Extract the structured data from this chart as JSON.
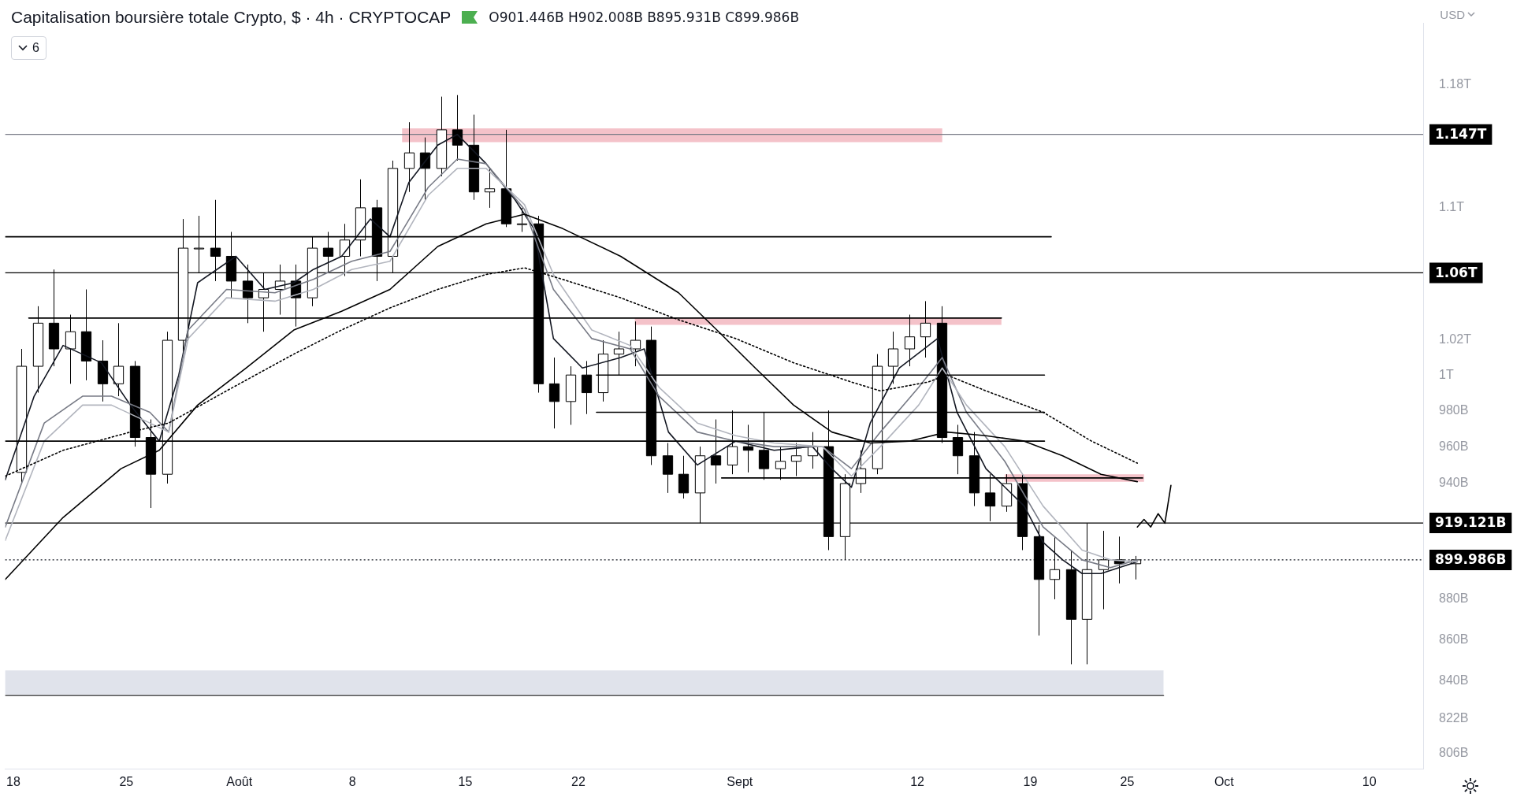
{
  "chart_data": {
    "type": "candlestick",
    "title": "Capitalisation boursière totale Crypto, $ · 4h · CRYPTOCAP",
    "annotations": [
      "O901.446B H902.008B B895.931B C899.986B",
      "6",
      "USD"
    ],
    "xlim": [
      "--07-17T12:00",
      "--10-13T08:00"
    ],
    "xticks": [
      {
        "value": "--07-18",
        "label": "18"
      },
      {
        "value": "--07-25",
        "label": "25"
      },
      {
        "value": "--08-01",
        "label": "Août"
      },
      {
        "value": "--08-08",
        "label": "8"
      },
      {
        "value": "--08-15",
        "label": "15"
      },
      {
        "value": "--08-22",
        "label": "22"
      },
      {
        "value": "--09-01",
        "label": "Sept"
      },
      {
        "value": "--09-12",
        "label": "12"
      },
      {
        "value": "--09-19",
        "label": "19"
      },
      {
        "value": "--09-25",
        "label": "25"
      },
      {
        "value": "--10-01",
        "label": "Oct"
      },
      {
        "value": "--10-10",
        "label": "10"
      }
    ],
    "ylim": [
      799000000000.0,
      1222000000000.0
    ],
    "yticks": [
      {
        "value": 806000000000.0,
        "label": "806B"
      },
      {
        "value": 822000000000.0,
        "label": "822B"
      },
      {
        "value": 840000000000.0,
        "label": "840B"
      },
      {
        "value": 860000000000.0,
        "label": "860B"
      },
      {
        "value": 880000000000.0,
        "label": "880B"
      },
      {
        "value": 940000000000.0,
        "label": "940B"
      },
      {
        "value": 960000000000.0,
        "label": "960B"
      },
      {
        "value": 980000000000.0,
        "label": "980B"
      },
      {
        "value": 1000000000000.0,
        "label": "1T"
      },
      {
        "value": 1020000000000.0,
        "label": "1.02T"
      },
      {
        "value": 1100000000000.0,
        "label": "1.1T"
      },
      {
        "value": 1180000000000.0,
        "label": "1.18T"
      }
    ],
    "log": "y",
    "grid": false,
    "legend": false,
    "series": [
      {
        "type": "area",
        "color": "#e0e3eb",
        "x": [
          "--07-17T12:00",
          "--09-27T06:00"
        ],
        "values": [
          null,
          null
        ],
        "lower": [
          833000000000.0,
          833000000000.0
        ],
        "upper": [
          845000000000.0,
          845000000000.0
        ]
      },
      {
        "type": "area",
        "color": "#f4c2c9",
        "x": [
          "--08-11T02:00",
          "--09-13T13:00"
        ],
        "values": [
          null,
          null
        ],
        "lower": [
          1142000000000.0,
          1142000000000.0
        ],
        "upper": [
          1151000000000.0,
          1151000000000.0
        ]
      },
      {
        "type": "area",
        "color": "#f4c2c9",
        "x": [
          "--08-25T12:00",
          "--09-17T05:00"
        ],
        "values": [
          null,
          null
        ],
        "lower": [
          1029000000000.0,
          1029000000000.0
        ],
        "upper": [
          1033000000000.0,
          1033000000000.0
        ]
      },
      {
        "type": "area",
        "color": "#f4c2c9",
        "x": [
          "--09-17T10:00",
          "--09-26T01:00"
        ],
        "values": [
          null,
          null
        ],
        "lower": [
          941000000000.0,
          941000000000.0
        ],
        "upper": [
          945000000000.0,
          945000000000.0
        ]
      },
      {
        "type": "line",
        "color": "#555555",
        "line_style": "solid",
        "x": [
          "--07-17T12:00",
          "--09-27T06:00"
        ],
        "values": [
          833000000000.0,
          833000000000.0
        ]
      },
      {
        "type": "line",
        "color": "#000000",
        "line_style": "solid",
        "x": [
          "--07-17T12:00",
          "--09-20T07:00"
        ],
        "values": [
          1082000000000.0,
          1082000000000.0
        ]
      },
      {
        "type": "line",
        "color": "#000000",
        "line_style": "solid",
        "x": [
          "--07-18T23:00",
          "--09-17T05:00"
        ],
        "values": [
          1033000000000.0,
          1033000000000.0
        ]
      },
      {
        "type": "line",
        "color": "#000000",
        "line_style": "solid",
        "x": [
          "--08-23T03:00",
          "--09-19T21:00"
        ],
        "values": [
          1000000000000.0,
          1000000000000.0
        ]
      },
      {
        "type": "line",
        "color": "#000000",
        "line_style": "solid",
        "x": [
          "--08-23T03:00",
          "--09-19T21:00"
        ],
        "values": [
          979000000000.0,
          979000000000.0
        ]
      },
      {
        "type": "line",
        "color": "#000000",
        "line_style": "solid",
        "x": [
          "--07-17T12:00",
          "--09-19T21:00"
        ],
        "values": [
          963000000000.0,
          963000000000.0
        ]
      },
      {
        "type": "line",
        "color": "#000000",
        "line_style": "solid",
        "x": [
          "--08-30T21:00",
          "--09-25T23:00"
        ],
        "values": [
          943000000000.0,
          943000000000.0
        ]
      },
      {
        "type": "line",
        "color": "#000000",
        "line_style": "solid",
        "x": [
          "--07-17T12:00",
          "--07-21T02:00",
          "--07-24T16:00",
          "--07-27T01:00",
          "--07-29T10:00",
          "--08-01T10:00",
          "--08-04T09:00",
          "--08-07T08:00",
          "--08-10T08:00",
          "--08-13T07:00",
          "--08-16T07:00",
          "--08-18T16:00",
          "--08-21T01:00",
          "--08-24T15:00",
          "--08-28T05:00",
          "--08-30T14:00",
          "--09-01T23:00",
          "--09-04T08:00",
          "--09-06T17:00",
          "--09-09T02:00",
          "--09-11T12:00",
          "--09-13T20:00",
          "--09-16T06:00",
          "--09-18T15:00",
          "--09-21T00:00",
          "--09-23T09:00",
          "--09-25T15:00"
        ],
        "values": [
          890000000000.0,
          922000000000.0,
          948000000000.0,
          958000000000.0,
          983000000000.0,
          1004000000000.0,
          1026000000000.0,
          1037000000000.0,
          1050000000000.0,
          1076000000000.0,
          1090000000000.0,
          1096000000000.0,
          1087000000000.0,
          1070000000000.0,
          1048000000000.0,
          1026000000000.0,
          1004000000000.0,
          983000000000.0,
          968000000000.0,
          962000000000.0,
          963000000000.0,
          968000000000.0,
          966000000000.0,
          963000000000.0,
          955000000000.0,
          945000000000.0,
          941000000000.0
        ]
      },
      {
        "type": "line",
        "color": "#000000",
        "line_style": "dotted",
        "x": [
          "--07-17T12:00",
          "--07-21T02:00",
          "--07-25T06:00",
          "--07-27T15:00",
          "--07-31T05:00",
          "--08-04T09:00",
          "--08-07T08:00",
          "--08-10T08:00",
          "--08-13T07:00",
          "--08-16T07:00",
          "--08-18T16:00",
          "--08-21T01:00",
          "--08-24T15:00",
          "--08-28T05:00",
          "--08-31T18:00",
          "--09-04T08:00",
          "--09-07T22:00",
          "--09-09T17:00",
          "--09-12T16:00",
          "--09-13T20:00",
          "--09-16T06:00",
          "--09-19T19:00",
          "--09-22T19:00",
          "--09-25T15:00"
        ],
        "values": [
          944000000000.0,
          958000000000.0,
          968000000000.0,
          973000000000.0,
          991000000000.0,
          1012000000000.0,
          1026000000000.0,
          1039000000000.0,
          1050000000000.0,
          1059000000000.0,
          1063000000000.0,
          1056000000000.0,
          1045000000000.0,
          1032000000000.0,
          1021000000000.0,
          1007000000000.0,
          996000000000.0,
          991000000000.0,
          996000000000.0,
          1000000000000.0,
          991000000000.0,
          979000000000.0,
          963000000000.0,
          951000000000.0
        ]
      },
      {
        "type": "line",
        "color": "#b2b5be",
        "line_style": "solid",
        "x": [
          "--07-17T12:00",
          "--07-19T22:00",
          "--07-22T07:00",
          "--07-24T02:00",
          "--07-26T11:00",
          "--07-27T15:00",
          "--07-28T20:00",
          "--07-31T05:00",
          "--08-03T05:00",
          "--08-05T14:00",
          "--08-07T23:00",
          "--08-10T08:00",
          "--08-12T17:00",
          "--08-14T12:00",
          "--08-16T07:00",
          "--08-18T16:00",
          "--08-20T11:00",
          "--08-22T20:00",
          "--08-25T05:00",
          "--08-27T00:00",
          "--08-29T09:00",
          "--08-31T18:00",
          "--09-03T03:00",
          "--09-06T03:00",
          "--09-07T22:00",
          "--09-09T17:00",
          "--09-12T02:00",
          "--09-13T13:00",
          "--09-15T01:00",
          "--09-17T10:00",
          "--09-19T19:00",
          "--09-22T05:00",
          "--09-23T23:00",
          "--09-25T15:00"
        ],
        "values": [
          910000000000.0,
          963000000000.0,
          983000000000.0,
          983000000000.0,
          973000000000.0,
          968000000000.0,
          1021000000000.0,
          1045000000000.0,
          1043000000000.0,
          1050000000000.0,
          1062000000000.0,
          1067000000000.0,
          1108000000000.0,
          1125000000000.0,
          1125000000000.0,
          1102000000000.0,
          1059000000000.0,
          1026000000000.0,
          1017000000000.0,
          993000000000.0,
          973000000000.0,
          966000000000.0,
          962000000000.0,
          960000000000.0,
          944000000000.0,
          960000000000.0,
          983000000000.0,
          1004000000000.0,
          983000000000.0,
          960000000000.0,
          928000000000.0,
          905000000000.0,
          900000000000.0,
          899000000000.0
        ]
      },
      {
        "type": "line",
        "color": "#787b86",
        "line_style": "solid",
        "x": [
          "--07-17T12:00",
          "--07-19T22:00",
          "--07-22T07:00",
          "--07-24T02:00",
          "--07-26T11:00",
          "--07-27T15:00",
          "--07-28T20:00",
          "--07-31T05:00",
          "--08-03T05:00",
          "--08-05T14:00",
          "--08-07T23:00",
          "--08-10T08:00",
          "--08-12T17:00",
          "--08-14T12:00",
          "--08-16T07:00",
          "--08-18T16:00",
          "--08-20T11:00",
          "--08-22T20:00",
          "--08-25T05:00",
          "--08-27T00:00",
          "--08-29T09:00",
          "--08-31T18:00",
          "--09-03T03:00",
          "--09-06T03:00",
          "--09-07T22:00",
          "--09-09T17:00",
          "--09-12T02:00",
          "--09-13T13:00",
          "--09-15T01:00",
          "--09-17T10:00",
          "--09-19T19:00",
          "--09-22T05:00",
          "--09-23T23:00",
          "--09-25T15:00"
        ],
        "values": [
          917000000000.0,
          973000000000.0,
          988000000000.0,
          988000000000.0,
          979000000000.0,
          968000000000.0,
          1026000000000.0,
          1050000000000.0,
          1048000000000.0,
          1056000000000.0,
          1067000000000.0,
          1073000000000.0,
          1113000000000.0,
          1131000000000.0,
          1128000000000.0,
          1099000000000.0,
          1050000000000.0,
          1021000000000.0,
          1015000000000.0,
          988000000000.0,
          968000000000.0,
          963000000000.0,
          960000000000.0,
          960000000000.0,
          948000000000.0,
          968000000000.0,
          993000000000.0,
          1010000000000.0,
          979000000000.0,
          952000000000.0,
          917000000000.0,
          900000000000.0,
          896000000000.0,
          900000000000.0
        ]
      },
      {
        "type": "line",
        "color": "#131722",
        "line_style": "solid",
        "x": [
          "--07-17T12:00",
          "--07-19T07:00",
          "--07-21T02:00",
          "--07-23T11:00",
          "--07-25T06:00",
          "--07-27T01:00",
          "--07-28T06:00",
          "--07-29T10:00",
          "--07-31T19:00",
          "--08-02T14:00",
          "--08-04T09:00",
          "--08-05T14:00",
          "--08-07T08:00",
          "--08-09T03:00",
          "--08-10T08:00",
          "--08-11T12:00",
          "--08-13T07:00",
          "--08-14T12:00",
          "--08-16T07:00",
          "--08-18T02:00",
          "--08-19T06:00",
          "--08-20T11:00",
          "--08-22T06:00",
          "--08-24T15:00",
          "--08-26T02:00",
          "--08-27T14:00",
          "--08-29T09:00",
          "--08-31T18:00",
          "--09-03T03:00",
          "--09-05T12:00",
          "--09-06T17:00",
          "--09-07T22:00",
          "--09-09T02:00",
          "--09-10T21:00",
          "--09-13T06:00",
          "--09-14T11:00",
          "--09-16T06:00",
          "--09-18T15:00",
          "--09-19T19:00",
          "--09-21T00:00",
          "--09-22T05:00",
          "--09-23T09:00",
          "--09-25T15:00"
        ],
        "values": [
          942000000000.0,
          988000000000.0,
          1017000000000.0,
          1007000000000.0,
          983000000000.0,
          963000000000.0,
          1000000000000.0,
          1054000000000.0,
          1070000000000.0,
          1050000000000.0,
          1054000000000.0,
          1062000000000.0,
          1070000000000.0,
          1093000000000.0,
          1082000000000.0,
          1116000000000.0,
          1140000000000.0,
          1147000000000.0,
          1128000000000.0,
          1105000000000.0,
          1087000000000.0,
          1021000000000.0,
          1004000000000.0,
          1010000000000.0,
          1015000000000.0,
          968000000000.0,
          950000000000.0,
          963000000000.0,
          958000000000.0,
          960000000000.0,
          948000000000.0,
          938000000000.0,
          973000000000.0,
          1004000000000.0,
          1021000000000.0,
          979000000000.0,
          948000000000.0,
          928000000000.0,
          909000000000.0,
          900000000000.0,
          893000000000.0,
          893000000000.0,
          899000000000.0
        ]
      },
      {
        "type": "line",
        "color": "#000000",
        "line_style": "solid",
        "x": [
          "--09-25T15:00",
          "--09-26T01:00",
          "--09-26T11:00",
          "--09-26T22:00",
          "--09-27T08:00",
          "--09-27T17:00"
        ],
        "values": [
          917000000000.0,
          921000000000.0,
          917000000000.0,
          924000000000.0,
          919000000000.0,
          939000000000.0
        ]
      },
      {
        "color": "#000000",
        "colors": [
          "#ffffff",
          "#ffffff",
          "#000000",
          "#ffffff",
          "#000000",
          "#000000",
          "#ffffff",
          "#000000",
          "#000000",
          "#ffffff",
          "#ffffff",
          "#ffffff",
          "#000000",
          "#000000",
          "#000000",
          "#ffffff",
          "#ffffff",
          "#000000",
          "#ffffff",
          "#000000",
          "#ffffff",
          "#ffffff",
          "#000000",
          "#ffffff",
          "#ffffff",
          "#000000",
          "#ffffff",
          "#000000",
          "#000000",
          "#ffffff",
          "#000000",
          "#ffffff",
          "#000000",
          "#000000",
          "#ffffff",
          "#000000",
          "#ffffff",
          "#ffffff",
          "#ffffff",
          "#000000",
          "#000000",
          "#000000",
          "#ffffff",
          "#000000",
          "#ffffff",
          "#000000",
          "#000000",
          "#ffffff",
          "#ffffff",
          "#ffffff",
          "#000000",
          "#ffffff",
          "#ffffff",
          "#ffffff",
          "#ffffff",
          "#ffffff",
          "#ffffff",
          "#000000",
          "#000000",
          "#000000",
          "#000000",
          "#ffffff",
          "#000000",
          "#000000",
          "#ffffff",
          "#000000",
          "#ffffff",
          "#ffffff",
          "#000000",
          "#ffffff"
        ],
        "x": [
          "--07-18T12:00",
          "--07-19T12:00",
          "--07-20T12:00",
          "--07-21T12:00",
          "--07-22T12:00",
          "--07-23T12:00",
          "--07-24T12:00",
          "--07-25T12:00",
          "--07-26T12:00",
          "--07-27T12:00",
          "--07-28T12:00",
          "--07-29T12:00",
          "--07-30T12:00",
          "--07-31T12:00",
          "--08-01T12:00",
          "--08-02T12:00",
          "--08-03T12:00",
          "--08-04T12:00",
          "--08-05T12:00",
          "--08-06T12:00",
          "--08-07T12:00",
          "--08-08T12:00",
          "--08-09T12:00",
          "--08-10T12:00",
          "--08-11T12:00",
          "--08-12T12:00",
          "--08-13T12:00",
          "--08-14T12:00",
          "--08-15T12:00",
          "--08-16T12:00",
          "--08-17T12:00",
          "--08-18T12:00",
          "--08-19T12:00",
          "--08-20T12:00",
          "--08-21T12:00",
          "--08-22T12:00",
          "--08-23T12:00",
          "--08-24T12:00",
          "--08-25T12:00",
          "--08-26T12:00",
          "--08-27T12:00",
          "--08-28T12:00",
          "--08-29T12:00",
          "--08-30T12:00",
          "--08-31T12:00",
          "--09-01T12:00",
          "--09-02T12:00",
          "--09-03T12:00",
          "--09-04T12:00",
          "--09-05T12:00",
          "--09-06T12:00",
          "--09-07T12:00",
          "--09-08T12:00",
          "--09-09T12:00",
          "--09-10T12:00",
          "--09-11T12:00",
          "--09-12T12:00",
          "--09-13T12:00",
          "--09-14T12:00",
          "--09-15T12:00",
          "--09-16T12:00",
          "--09-17T12:00",
          "--09-18T12:00",
          "--09-19T12:00",
          "--09-20T12:00",
          "--09-21T12:00",
          "--09-22T12:00",
          "--09-23T12:00",
          "--09-24T12:00",
          "--09-25T12:00"
        ],
        "ohlc": [
          [
            946000000000.0,
            1015000000000.0,
            940000000000.0,
            1005000000000.0
          ],
          [
            1005000000000.0,
            1040000000000.0,
            990000000000.0,
            1030000000000.0
          ],
          [
            1030000000000.0,
            1062000000000.0,
            1005000000000.0,
            1015000000000.0
          ],
          [
            1015000000000.0,
            1035000000000.0,
            995000000000.0,
            1025000000000.0
          ],
          [
            1025000000000.0,
            1050000000000.0,
            997000000000.0,
            1008000000000.0
          ],
          [
            1008000000000.0,
            1020000000000.0,
            985000000000.0,
            995000000000.0
          ],
          [
            995000000000.0,
            1030000000000.0,
            988000000000.0,
            1005000000000.0
          ],
          [
            1005000000000.0,
            1008000000000.0,
            960000000000.0,
            965000000000.0
          ],
          [
            965000000000.0,
            975000000000.0,
            927000000000.0,
            945000000000.0
          ],
          [
            945000000000.0,
            1025000000000.0,
            940000000000.0,
            1020000000000.0
          ],
          [
            1020000000000.0,
            1093000000000.0,
            1010000000000.0,
            1075000000000.0
          ],
          [
            1075000000000.0,
            1095000000000.0,
            1060000000000.0,
            1075000000000.0
          ],
          [
            1075000000000.0,
            1105000000000.0,
            1055000000000.0,
            1070000000000.0
          ],
          [
            1070000000000.0,
            1085000000000.0,
            1045000000000.0,
            1055000000000.0
          ],
          [
            1055000000000.0,
            1065000000000.0,
            1030000000000.0,
            1045000000000.0
          ],
          [
            1045000000000.0,
            1060000000000.0,
            1025000000000.0,
            1050000000000.0
          ],
          [
            1050000000000.0,
            1065000000000.0,
            1035000000000.0,
            1055000000000.0
          ],
          [
            1055000000000.0,
            1065000000000.0,
            1028000000000.0,
            1045000000000.0
          ],
          [
            1045000000000.0,
            1082000000000.0,
            1040000000000.0,
            1075000000000.0
          ],
          [
            1075000000000.0,
            1085000000000.0,
            1060000000000.0,
            1070000000000.0
          ],
          [
            1070000000000.0,
            1090000000000.0,
            1058000000000.0,
            1080000000000.0
          ],
          [
            1080000000000.0,
            1118000000000.0,
            1070000000000.0,
            1100000000000.0
          ],
          [
            1100000000000.0,
            1105000000000.0,
            1055000000000.0,
            1070000000000.0
          ],
          [
            1070000000000.0,
            1130000000000.0,
            1060000000000.0,
            1125000000000.0
          ],
          [
            1125000000000.0,
            1155000000000.0,
            1110000000000.0,
            1135000000000.0
          ],
          [
            1135000000000.0,
            1145000000000.0,
            1105000000000.0,
            1125000000000.0
          ],
          [
            1125000000000.0,
            1172000000000.0,
            1120000000000.0,
            1150000000000.0
          ],
          [
            1150000000000.0,
            1173000000000.0,
            1130000000000.0,
            1140000000000.0
          ],
          [
            1140000000000.0,
            1160000000000.0,
            1105000000000.0,
            1110000000000.0
          ],
          [
            1110000000000.0,
            1125000000000.0,
            1100000000000.0,
            1112000000000.0
          ],
          [
            1112000000000.0,
            1150000000000.0,
            1088000000000.0,
            1090000000000.0
          ],
          [
            1090000000000.0,
            1100000000000.0,
            1085000000000.0,
            1090000000000.0
          ],
          [
            1090000000000.0,
            1095000000000.0,
            990000000000.0,
            995000000000.0
          ],
          [
            995000000000.0,
            1010000000000.0,
            970000000000.0,
            985000000000.0
          ],
          [
            985000000000.0,
            1005000000000.0,
            972000000000.0,
            1000000000000.0
          ],
          [
            1000000000000.0,
            1008000000000.0,
            978000000000.0,
            990000000000.0
          ],
          [
            990000000000.0,
            1020000000000.0,
            985000000000.0,
            1012000000000.0
          ],
          [
            1012000000000.0,
            1025000000000.0,
            1000000000000.0,
            1015000000000.0
          ],
          [
            1015000000000.0,
            1031000000000.0,
            1005000000000.0,
            1020000000000.0
          ],
          [
            1020000000000.0,
            1028000000000.0,
            950000000000.0,
            955000000000.0
          ],
          [
            955000000000.0,
            962000000000.0,
            935000000000.0,
            945000000000.0
          ],
          [
            945000000000.0,
            955000000000.0,
            932000000000.0,
            935000000000.0
          ],
          [
            935000000000.0,
            960000000000.0,
            919000000000.0,
            955000000000.0
          ],
          [
            955000000000.0,
            975000000000.0,
            940000000000.0,
            950000000000.0
          ],
          [
            950000000000.0,
            980000000000.0,
            945000000000.0,
            960000000000.0
          ],
          [
            960000000000.0,
            972000000000.0,
            946000000000.0,
            958000000000.0
          ],
          [
            958000000000.0,
            979000000000.0,
            942000000000.0,
            948000000000.0
          ],
          [
            948000000000.0,
            960000000000.0,
            942000000000.0,
            952000000000.0
          ],
          [
            952000000000.0,
            962000000000.0,
            944000000000.0,
            955000000000.0
          ],
          [
            955000000000.0,
            968000000000.0,
            948000000000.0,
            960000000000.0
          ],
          [
            960000000000.0,
            980000000000.0,
            905000000000.0,
            912000000000.0
          ],
          [
            912000000000.0,
            945000000000.0,
            900000000000.0,
            940000000000.0
          ],
          [
            940000000000.0,
            958000000000.0,
            935000000000.0,
            948000000000.0
          ],
          [
            948000000000.0,
            1012000000000.0,
            945000000000.0,
            1005000000000.0
          ],
          [
            1005000000000.0,
            1025000000000.0,
            995000000000.0,
            1015000000000.0
          ],
          [
            1015000000000.0,
            1035000000000.0,
            1005000000000.0,
            1022000000000.0
          ],
          [
            1022000000000.0,
            1043000000000.0,
            1010000000000.0,
            1030000000000.0
          ],
          [
            1030000000000.0,
            1040000000000.0,
            962000000000.0,
            965000000000.0
          ],
          [
            965000000000.0,
            972000000000.0,
            945000000000.0,
            955000000000.0
          ],
          [
            955000000000.0,
            968000000000.0,
            928000000000.0,
            935000000000.0
          ],
          [
            935000000000.0,
            945000000000.0,
            920000000000.0,
            928000000000.0
          ],
          [
            928000000000.0,
            945000000000.0,
            925000000000.0,
            940000000000.0
          ],
          [
            940000000000.0,
            945000000000.0,
            905000000000.0,
            912000000000.0
          ],
          [
            912000000000.0,
            918000000000.0,
            862000000000.0,
            890000000000.0
          ],
          [
            890000000000.0,
            912000000000.0,
            880000000000.0,
            895000000000.0
          ],
          [
            895000000000.0,
            905000000000.0,
            848000000000.0,
            870000000000.0
          ],
          [
            870000000000.0,
            919000000000.0,
            848000000000.0,
            895000000000.0
          ],
          [
            895000000000.0,
            915000000000.0,
            875000000000.0,
            900000000000.0
          ],
          [
            900000000000.0,
            912000000000.0,
            888000000000.0,
            898000000000.0
          ],
          [
            898000000000.0,
            902000000000.0,
            890000000000.0,
            900000000000.0
          ]
        ]
      }
    ],
    "ref_lines": [
      {
        "axis": "y",
        "value": 1147000000000.0,
        "label": "1.147T",
        "color": "#787b86",
        "line_style": "solid"
      },
      {
        "axis": "y",
        "value": 1060000000000.0,
        "label": "1.06T",
        "color": "#000000",
        "line_style": "solid"
      },
      {
        "axis": "y",
        "value": 919121000000.0,
        "label": "919.121B",
        "color": "#000000",
        "line_style": "solid"
      },
      {
        "axis": "y",
        "value": 899986000000.0,
        "label": "899.986B",
        "color": "#131722",
        "line_style": "dotted"
      }
    ]
  }
}
